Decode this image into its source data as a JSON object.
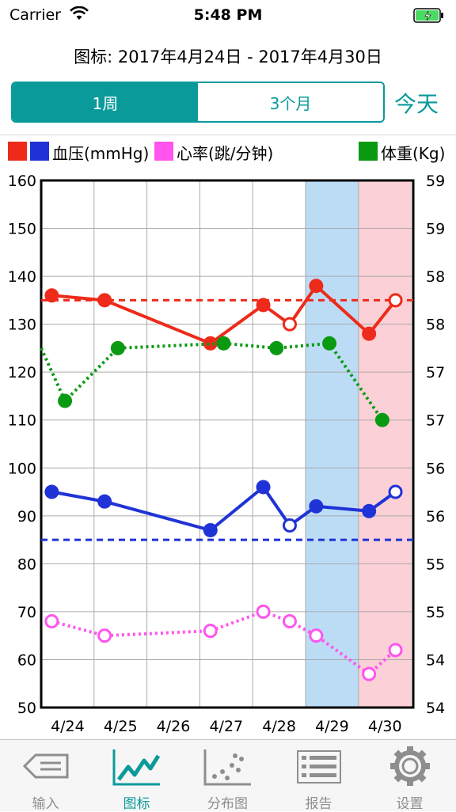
{
  "status_bar": {
    "carrier": "Carrier",
    "time": "5:48 PM"
  },
  "header": {
    "range_title": "图标: 2017年4月24日 - 2017年4月30日"
  },
  "period_selector": {
    "segments": [
      "1周",
      "3个月"
    ],
    "selected": "1周"
  },
  "today_button": "今天",
  "legend": {
    "blood_pressure": "血压(mmHg)",
    "heart_rate": "心率(跳/分钟)",
    "weight": "体重(Kg)"
  },
  "colors": {
    "accent": "#0a9a9a",
    "systolic": "#ee2a1b",
    "diastolic": "#1f33d6",
    "heart_rate": "#ff55ee",
    "weight": "#0a9a12",
    "weekend_saturday": "#bcdcf6",
    "weekend_sunday": "#fbd0d6"
  },
  "chart_data": {
    "type": "line",
    "categories": [
      "4/24",
      "4/25",
      "4/26",
      "4/27",
      "4/28",
      "4/29",
      "4/30"
    ],
    "y_left": {
      "ticks": [
        160,
        150,
        140,
        130,
        120,
        110,
        100,
        90,
        80,
        70,
        60,
        50
      ],
      "range": [
        50,
        160
      ]
    },
    "y_right": {
      "ticks": [
        "59",
        "59",
        "58",
        "58",
        "57",
        "57",
        "56",
        "56",
        "55",
        "55",
        "54",
        "54"
      ]
    },
    "grid": true,
    "highlighted_days": [
      "4/29",
      "4/30"
    ],
    "series": [
      {
        "key": "systolic",
        "style": "solid",
        "points": [
          {
            "x": 0.2,
            "y": 136,
            "open": false
          },
          {
            "x": 1.2,
            "y": 135,
            "open": false
          },
          {
            "x": 3.2,
            "y": 126,
            "open": false
          },
          {
            "x": 4.2,
            "y": 134,
            "open": false
          },
          {
            "x": 4.7,
            "y": 130,
            "open": true
          },
          {
            "x": 5.2,
            "y": 138,
            "open": false
          },
          {
            "x": 6.2,
            "y": 128,
            "open": false
          },
          {
            "x": 6.7,
            "y": 135,
            "open": true
          }
        ]
      },
      {
        "key": "diastolic",
        "style": "solid",
        "points": [
          {
            "x": 0.2,
            "y": 95,
            "open": false
          },
          {
            "x": 1.2,
            "y": 93,
            "open": false
          },
          {
            "x": 3.2,
            "y": 87,
            "open": false
          },
          {
            "x": 4.2,
            "y": 96,
            "open": false
          },
          {
            "x": 4.7,
            "y": 88,
            "open": true
          },
          {
            "x": 5.2,
            "y": 92,
            "open": false
          },
          {
            "x": 6.2,
            "y": 91,
            "open": false
          },
          {
            "x": 6.7,
            "y": 95,
            "open": true
          }
        ]
      },
      {
        "key": "heart_rate",
        "style": "dotted",
        "points": [
          {
            "x": 0.2,
            "y": 68,
            "open": true
          },
          {
            "x": 1.2,
            "y": 65,
            "open": true
          },
          {
            "x": 3.2,
            "y": 66,
            "open": true
          },
          {
            "x": 4.2,
            "y": 70,
            "open": true
          },
          {
            "x": 4.7,
            "y": 68,
            "open": true
          },
          {
            "x": 5.2,
            "y": 65,
            "open": true
          },
          {
            "x": 6.2,
            "y": 57,
            "open": true
          },
          {
            "x": 6.7,
            "y": 62,
            "open": true
          }
        ]
      },
      {
        "key": "weight",
        "style": "dotted",
        "lead_in": {
          "x": 0,
          "y": 125
        },
        "points": [
          {
            "x": 0.45,
            "y": 114,
            "open": false
          },
          {
            "x": 1.45,
            "y": 125,
            "open": false
          },
          {
            "x": 3.45,
            "y": 126,
            "open": false
          },
          {
            "x": 4.45,
            "y": 125,
            "open": false
          },
          {
            "x": 5.45,
            "y": 126,
            "open": false
          },
          {
            "x": 6.45,
            "y": 110,
            "open": false
          }
        ]
      }
    ],
    "reference_lines": [
      {
        "key": "systolic",
        "y": 135
      },
      {
        "key": "diastolic",
        "y": 85
      }
    ]
  },
  "tab_bar": {
    "items": [
      {
        "label": "输入",
        "icon": "input-tag-icon"
      },
      {
        "label": "图标",
        "icon": "line-chart-icon"
      },
      {
        "label": "分布图",
        "icon": "scatter-plot-icon"
      },
      {
        "label": "报告",
        "icon": "report-list-icon"
      },
      {
        "label": "设置",
        "icon": "gear-icon"
      }
    ],
    "selected": "图标"
  }
}
